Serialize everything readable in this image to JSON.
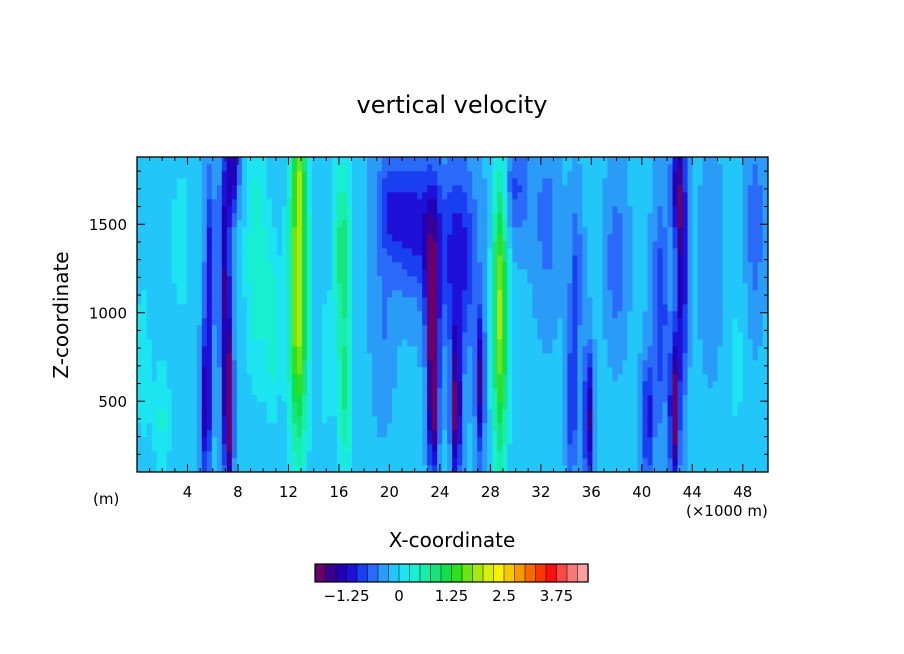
{
  "chart_data": {
    "type": "heatmap",
    "title": "vertical velocity",
    "xlabel": "X-coordinate",
    "ylabel": "Z-coordinate",
    "x_unit_label": "(×1000 m)",
    "y_unit_label": "(m)",
    "xlim": [
      0,
      50
    ],
    "ylim": [
      100,
      1880
    ],
    "x_ticks": [
      4,
      8,
      12,
      16,
      20,
      24,
      28,
      32,
      36,
      40,
      44,
      48
    ],
    "y_ticks": [
      500,
      1000,
      1500
    ],
    "colorbar": {
      "min": -2.0,
      "max": 4.0,
      "step": 0.25,
      "tick_values": [
        -1.25,
        0,
        1.25,
        2.5,
        3.75
      ],
      "tick_labels": [
        "−1.25",
        "0",
        "1.25",
        "2.5",
        "3.75"
      ],
      "colors": [
        "#6a006a",
        "#3a0090",
        "#2200b8",
        "#1f10d8",
        "#1a3ff0",
        "#2a6af8",
        "#2a9cf8",
        "#22c6f8",
        "#1ce4f0",
        "#18eed0",
        "#18eea8",
        "#18e47a",
        "#10e04a",
        "#30e020",
        "#70e410",
        "#a8e810",
        "#d8ee10",
        "#f8f000",
        "#f8c800",
        "#f89800",
        "#f86800",
        "#f83800",
        "#f81010",
        "#f84848",
        "#f87878",
        "#f8a0a0"
      ]
    },
    "field": {
      "background_value": -0.2,
      "features": [
        {
          "x": 0.5,
          "z": 700,
          "w": 0.6,
          "d": 500,
          "value": 0.4
        },
        {
          "x": 2.0,
          "z": 400,
          "w": 0.7,
          "d": 350,
          "value": 0.5
        },
        {
          "x": 3.5,
          "z": 1400,
          "w": 0.8,
          "d": 450,
          "value": 0.4
        },
        {
          "x": 5.5,
          "z": 500,
          "w": 0.35,
          "d": 420,
          "value": -1.5
        },
        {
          "x": 5.8,
          "z": 1300,
          "w": 0.4,
          "d": 500,
          "value": -0.9
        },
        {
          "x": 7.3,
          "z": 450,
          "w": 0.35,
          "d": 420,
          "value": -2.0
        },
        {
          "x": 7.0,
          "z": 1200,
          "w": 0.45,
          "d": 700,
          "value": -1.3
        },
        {
          "x": 7.6,
          "z": 1800,
          "w": 0.5,
          "d": 250,
          "value": -1.2
        },
        {
          "x": 9.5,
          "z": 1300,
          "w": 0.9,
          "d": 700,
          "value": 0.7
        },
        {
          "x": 10.8,
          "z": 900,
          "w": 0.6,
          "d": 500,
          "value": 0.6
        },
        {
          "x": 12.8,
          "z": 1100,
          "w": 0.75,
          "d": 900,
          "value": 2.2
        },
        {
          "x": 12.9,
          "z": 1750,
          "w": 0.5,
          "d": 250,
          "value": 0.8
        },
        {
          "x": 16.5,
          "z": 500,
          "w": 0.6,
          "d": 450,
          "value": 0.9
        },
        {
          "x": 16.3,
          "z": 1350,
          "w": 0.7,
          "d": 550,
          "value": 1.1
        },
        {
          "x": 15.0,
          "z": 700,
          "w": 0.5,
          "d": 400,
          "value": 0.4
        },
        {
          "x": 19.5,
          "z": 900,
          "w": 0.8,
          "d": 450,
          "value": -0.3
        },
        {
          "x": 20.0,
          "z": 1600,
          "w": 1.2,
          "d": 300,
          "value": -0.6
        },
        {
          "x": 22.0,
          "z": 1500,
          "w": 1.8,
          "d": 400,
          "value": -0.9
        },
        {
          "x": 23.5,
          "z": 550,
          "w": 0.4,
          "d": 450,
          "value": -2.0
        },
        {
          "x": 23.4,
          "z": 1200,
          "w": 0.6,
          "d": 500,
          "value": -1.3
        },
        {
          "x": 25.3,
          "z": 450,
          "w": 0.4,
          "d": 420,
          "value": -1.7
        },
        {
          "x": 25.5,
          "z": 1300,
          "w": 1.4,
          "d": 550,
          "value": -1.0
        },
        {
          "x": 27.2,
          "z": 600,
          "w": 0.35,
          "d": 400,
          "value": -1.4
        },
        {
          "x": 28.8,
          "z": 1000,
          "w": 0.6,
          "d": 900,
          "value": 2.0
        },
        {
          "x": 30.0,
          "z": 1700,
          "w": 1.2,
          "d": 300,
          "value": -0.6
        },
        {
          "x": 32.5,
          "z": 1500,
          "w": 1.0,
          "d": 500,
          "value": -0.4
        },
        {
          "x": 34.5,
          "z": 500,
          "w": 0.4,
          "d": 400,
          "value": -0.9
        },
        {
          "x": 35.8,
          "z": 400,
          "w": 0.35,
          "d": 380,
          "value": -1.5
        },
        {
          "x": 34.8,
          "z": 1200,
          "w": 0.5,
          "d": 450,
          "value": -0.6
        },
        {
          "x": 38.0,
          "z": 1300,
          "w": 0.8,
          "d": 450,
          "value": -0.5
        },
        {
          "x": 40.5,
          "z": 400,
          "w": 0.45,
          "d": 350,
          "value": -1.0
        },
        {
          "x": 41.5,
          "z": 1000,
          "w": 0.6,
          "d": 600,
          "value": -0.8
        },
        {
          "x": 42.6,
          "z": 450,
          "w": 0.35,
          "d": 420,
          "value": -1.9
        },
        {
          "x": 43.2,
          "z": 1250,
          "w": 0.4,
          "d": 700,
          "value": -1.3
        },
        {
          "x": 42.8,
          "z": 1700,
          "w": 0.5,
          "d": 300,
          "value": -1.1
        },
        {
          "x": 45.5,
          "z": 1300,
          "w": 0.8,
          "d": 550,
          "value": -0.3
        },
        {
          "x": 47.5,
          "z": 700,
          "w": 0.7,
          "d": 450,
          "value": 0.3
        },
        {
          "x": 49.0,
          "z": 1500,
          "w": 0.7,
          "d": 500,
          "value": -0.5
        }
      ]
    }
  }
}
